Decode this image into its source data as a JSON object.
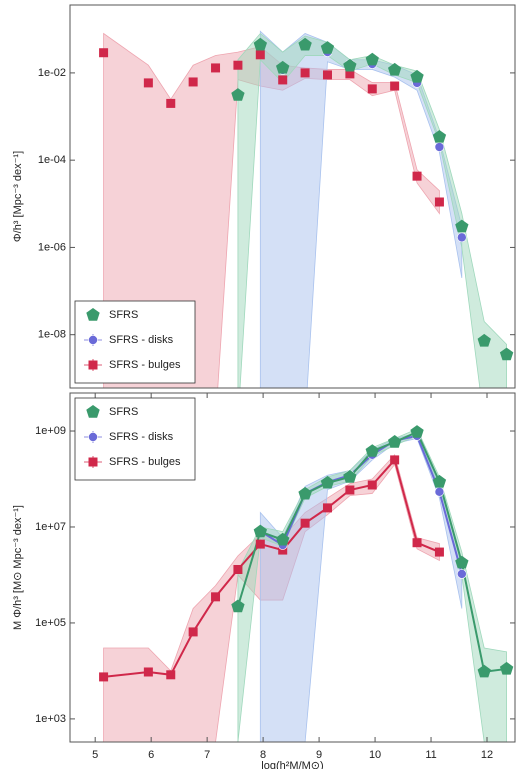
{
  "chart_data": [
    {
      "type": "scatter",
      "y_label": "Φ/h³ [Mpc⁻³ dex⁻¹]",
      "log_y": true,
      "legend": "lower left",
      "connect": false,
      "xlim": [
        4.55,
        12.5
      ],
      "ylim": [
        6e-10,
        0.36
      ],
      "yticks": [
        {
          "value": 0.01,
          "label": "1e-02"
        },
        {
          "value": 0.0001,
          "label": "1e-04"
        },
        {
          "value": 1e-06,
          "label": "1e-06"
        },
        {
          "value": 1e-08,
          "label": "1e-08"
        }
      ],
      "series": [
        {
          "name": "SFRS - bulges",
          "color": "#d0284a",
          "band_color": "#eea5b0",
          "marker": "square",
          "x": [
            5.15,
            5.95,
            6.35,
            6.75,
            7.15,
            7.55,
            7.95,
            8.35,
            8.75,
            9.15,
            9.55,
            9.95,
            10.35,
            10.75,
            11.15
          ],
          "values": [
            0.029,
            0.0059,
            0.002,
            0.0062,
            0.013,
            0.015,
            0.026,
            0.0069,
            0.01,
            0.009,
            0.0095,
            0.0043,
            0.005,
            4.3e-05,
            1.1e-05
          ],
          "upper": [
            0.08,
            0.015,
            0.0025,
            0.015,
            0.025,
            0.03,
            0.04,
            0.015,
            0.013,
            0.012,
            0.012,
            0.006,
            0.006,
            6e-05,
            2e-05
          ],
          "lower": [
            1e-10,
            1e-10,
            1e-10,
            1e-10,
            1e-10,
            0.007,
            0.005,
            0.004,
            0.0075,
            0.007,
            0.007,
            0.003,
            0.004,
            3e-05,
            6e-06
          ]
        },
        {
          "name": "SFRS - disks",
          "color": "#6a6ad8",
          "band_color": "#a9c2ee",
          "marker": "circle",
          "x": [
            7.95,
            8.35,
            8.75,
            9.15,
            9.55,
            9.95,
            10.35,
            10.75,
            11.15,
            11.55
          ],
          "values": [
            0.044,
            0.0117,
            0.042,
            0.03,
            0.016,
            0.016,
            0.0117,
            0.0059,
            0.0002,
            1.7e-06
          ],
          "upper": [
            0.09,
            0.03,
            0.08,
            0.05,
            0.02,
            0.02,
            0.015,
            0.009,
            0.0003,
            3e-06
          ],
          "lower": [
            1e-10,
            1e-10,
            1e-10,
            0.018,
            0.012,
            0.012,
            0.008,
            0.004,
            0.00015,
            2e-07
          ]
        },
        {
          "name": "SFRS",
          "color": "#3a9a6c",
          "band_color": "#9fd8bc",
          "marker": "pentagon",
          "x": [
            7.55,
            7.95,
            8.35,
            8.75,
            9.15,
            9.55,
            9.95,
            10.35,
            10.75,
            11.15,
            11.55,
            11.95,
            12.35
          ],
          "values": [
            0.0031,
            0.044,
            0.013,
            0.044,
            0.037,
            0.0145,
            0.02,
            0.0117,
            0.0081,
            0.00034,
            3e-06,
            7.2e-09,
            3.5e-09
          ],
          "upper": [
            0.02,
            0.08,
            0.03,
            0.07,
            0.05,
            0.02,
            0.025,
            0.015,
            0.011,
            0.0005,
            6e-06,
            2e-08,
            6e-09
          ],
          "lower": [
            1e-10,
            0.02,
            0.006,
            0.025,
            0.025,
            0.011,
            0.016,
            0.009,
            0.006,
            0.00025,
            1e-06,
            1e-10,
            1e-10
          ]
        }
      ]
    },
    {
      "type": "line",
      "y_label": "M Φ/h³ [M⊙ Mpc⁻³ dex⁻¹]",
      "x_label": "log(h²M/M⊙)",
      "log_y": true,
      "legend": "upper left",
      "connect": true,
      "xlim": [
        4.55,
        12.5
      ],
      "ylim": [
        330,
        6200000000
      ],
      "xticks": [
        5,
        6,
        7,
        8,
        9,
        10,
        11,
        12
      ],
      "yticks": [
        {
          "value": 1000000000,
          "label": "1e+09"
        },
        {
          "value": 10000000,
          "label": "1e+07"
        },
        {
          "value": 100000,
          "label": "1e+05"
        },
        {
          "value": 1000,
          "label": "1e+03"
        }
      ],
      "series": [
        {
          "name": "SFRS - bulges",
          "color": "#d0284a",
          "band_color": "#eea5b0",
          "marker": "square",
          "x": [
            5.15,
            5.95,
            6.35,
            6.75,
            7.15,
            7.55,
            7.95,
            8.35,
            8.75,
            9.15,
            9.55,
            9.95,
            10.35,
            10.75,
            11.15
          ],
          "values": [
            7500,
            9500,
            8300,
            65000,
            350000,
            1300000,
            4400000,
            3300000,
            12000000,
            25000000,
            59000000,
            75000000,
            250000000,
            4700000,
            3000000
          ],
          "upper": [
            30000,
            30000,
            10000,
            200000,
            600000,
            2500000,
            7000000,
            6000000,
            20000000,
            40000000,
            80000000,
            100000000,
            320000000,
            6000000,
            4500000
          ],
          "lower": [
            330,
            330,
            330,
            330,
            330,
            1000000,
            300000,
            300000,
            8000000,
            18000000,
            45000000,
            50000000,
            200000000,
            3500000,
            2000000
          ]
        },
        {
          "name": "SFRS - disks",
          "color": "#6a6ad8",
          "band_color": "#a9c2ee",
          "marker": "circle",
          "x": [
            7.95,
            8.35,
            8.75,
            9.15,
            9.55,
            9.95,
            10.35,
            10.75,
            11.15,
            11.55
          ],
          "values": [
            8200000,
            4200000,
            50000000,
            86000000,
            120000000,
            320000000,
            630000000,
            790000000,
            54000000,
            1050000
          ],
          "upper": [
            20000000,
            6000000,
            70000000,
            120000000,
            150000000,
            400000000,
            700000000,
            900000000,
            70000000,
            2000000
          ],
          "lower": [
            330,
            330,
            330,
            60000000,
            90000000,
            250000000,
            550000000,
            700000000,
            40000000,
            200000
          ]
        },
        {
          "name": "SFRS",
          "color": "#3a9a6c",
          "band_color": "#9fd8bc",
          "marker": "pentagon",
          "x": [
            7.55,
            7.95,
            8.35,
            8.75,
            9.15,
            9.55,
            9.95,
            10.35,
            10.75,
            11.15,
            11.55,
            11.95,
            12.35
          ],
          "values": [
            220000,
            8000000,
            5400000,
            49000000,
            83000000,
            110000000,
            380000000,
            590000000,
            950000000,
            87000000,
            1800000,
            9600,
            11000
          ],
          "upper": [
            1200000,
            10000000,
            8000000,
            60000000,
            110000000,
            150000000,
            450000000,
            700000000,
            1100000000,
            110000000,
            3000000,
            30000,
            25000
          ],
          "lower": [
            330,
            6000000,
            4000000,
            40000000,
            70000000,
            90000000,
            300000000,
            500000000,
            800000000,
            60000000,
            1000000,
            330,
            330
          ]
        }
      ]
    }
  ]
}
